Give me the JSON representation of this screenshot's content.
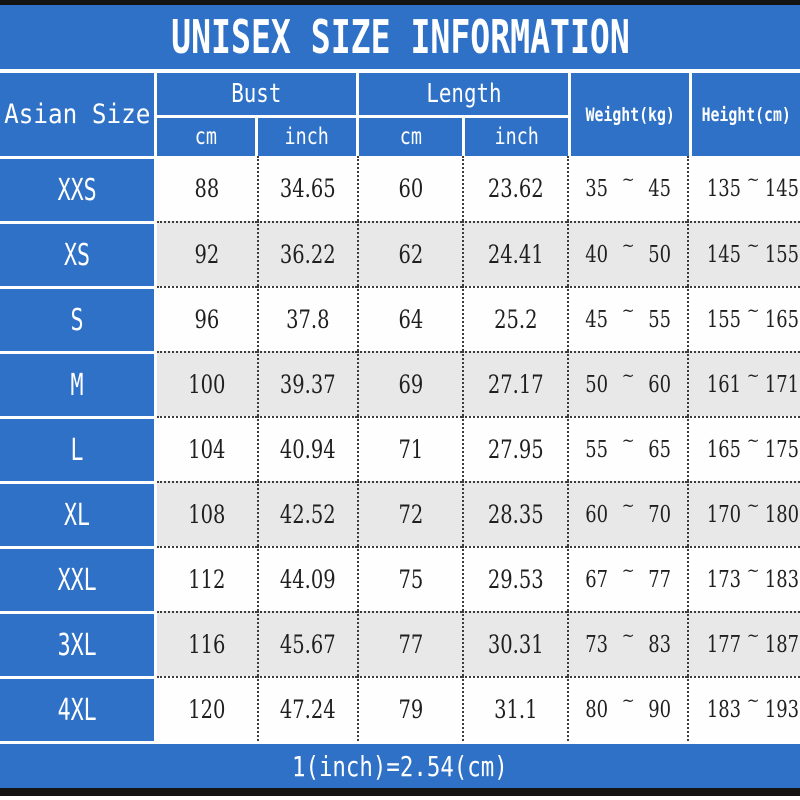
{
  "title": "UNISEX SIZE INFORMATION",
  "footer_note": "1(inch)=2.54(cm)",
  "tilde": "~",
  "colors": {
    "accent_blue": "#2e71c6",
    "alt_row_gray": "#e8e8e8",
    "edge_strip_black": "#141414",
    "dotted_border": "#3c3c3c",
    "header_text": "#ffffff",
    "cell_text": "#1f1f1f"
  },
  "header": {
    "size_label": "Asian Size",
    "bust": {
      "label": "Bust",
      "sub": [
        "cm",
        "inch"
      ]
    },
    "length": {
      "label": "Length",
      "sub": [
        "cm",
        "inch"
      ]
    },
    "weight_label": "Weight(kg)",
    "height_label": "Height(cm)"
  },
  "rows": [
    {
      "size": "XXS",
      "bust_cm": "88",
      "bust_inch": "34.65",
      "length_cm": "60",
      "length_inch": "23.62",
      "weight": [
        "35",
        "45"
      ],
      "height": [
        "135",
        "145"
      ]
    },
    {
      "size": "XS",
      "bust_cm": "92",
      "bust_inch": "36.22",
      "length_cm": "62",
      "length_inch": "24.41",
      "weight": [
        "40",
        "50"
      ],
      "height": [
        "145",
        "155"
      ]
    },
    {
      "size": "S",
      "bust_cm": "96",
      "bust_inch": "37.8",
      "length_cm": "64",
      "length_inch": "25.2",
      "weight": [
        "45",
        "55"
      ],
      "height": [
        "155",
        "165"
      ]
    },
    {
      "size": "M",
      "bust_cm": "100",
      "bust_inch": "39.37",
      "length_cm": "69",
      "length_inch": "27.17",
      "weight": [
        "50",
        "60"
      ],
      "height": [
        "161",
        "171"
      ]
    },
    {
      "size": "L",
      "bust_cm": "104",
      "bust_inch": "40.94",
      "length_cm": "71",
      "length_inch": "27.95",
      "weight": [
        "55",
        "65"
      ],
      "height": [
        "165",
        "175"
      ]
    },
    {
      "size": "XL",
      "bust_cm": "108",
      "bust_inch": "42.52",
      "length_cm": "72",
      "length_inch": "28.35",
      "weight": [
        "60",
        "70"
      ],
      "height": [
        "170",
        "180"
      ]
    },
    {
      "size": "XXL",
      "bust_cm": "112",
      "bust_inch": "44.09",
      "length_cm": "75",
      "length_inch": "29.53",
      "weight": [
        "67",
        "77"
      ],
      "height": [
        "173",
        "183"
      ]
    },
    {
      "size": "3XL",
      "bust_cm": "116",
      "bust_inch": "45.67",
      "length_cm": "77",
      "length_inch": "30.31",
      "weight": [
        "73",
        "83"
      ],
      "height": [
        "177",
        "187"
      ]
    },
    {
      "size": "4XL",
      "bust_cm": "120",
      "bust_inch": "47.24",
      "length_cm": "79",
      "length_inch": "31.1",
      "weight": [
        "80",
        "90"
      ],
      "height": [
        "183",
        "193"
      ]
    }
  ],
  "chart_data": {
    "type": "table",
    "title": "UNISEX SIZE INFORMATION",
    "columns": [
      "Asian Size",
      "Bust cm",
      "Bust inch",
      "Length cm",
      "Length inch",
      "Weight(kg)",
      "Height(cm)"
    ],
    "rows": [
      [
        "XXS",
        88,
        34.65,
        60,
        23.62,
        "35~45",
        "135~145"
      ],
      [
        "XS",
        92,
        36.22,
        62,
        24.41,
        "40~50",
        "145~155"
      ],
      [
        "S",
        96,
        37.8,
        64,
        25.2,
        "45~55",
        "155~165"
      ],
      [
        "M",
        100,
        39.37,
        69,
        27.17,
        "50~60",
        "161~171"
      ],
      [
        "L",
        104,
        40.94,
        71,
        27.95,
        "55~65",
        "165~175"
      ],
      [
        "XL",
        108,
        42.52,
        72,
        28.35,
        "60~70",
        "170~180"
      ],
      [
        "XXL",
        112,
        44.09,
        75,
        29.53,
        "67~77",
        "173~183"
      ],
      [
        "3XL",
        116,
        45.67,
        77,
        30.31,
        "73~83",
        "177~187"
      ],
      [
        "4XL",
        120,
        47.24,
        79,
        31.1,
        "80~90",
        "183~193"
      ]
    ],
    "footnote": "1(inch)=2.54(cm)"
  }
}
